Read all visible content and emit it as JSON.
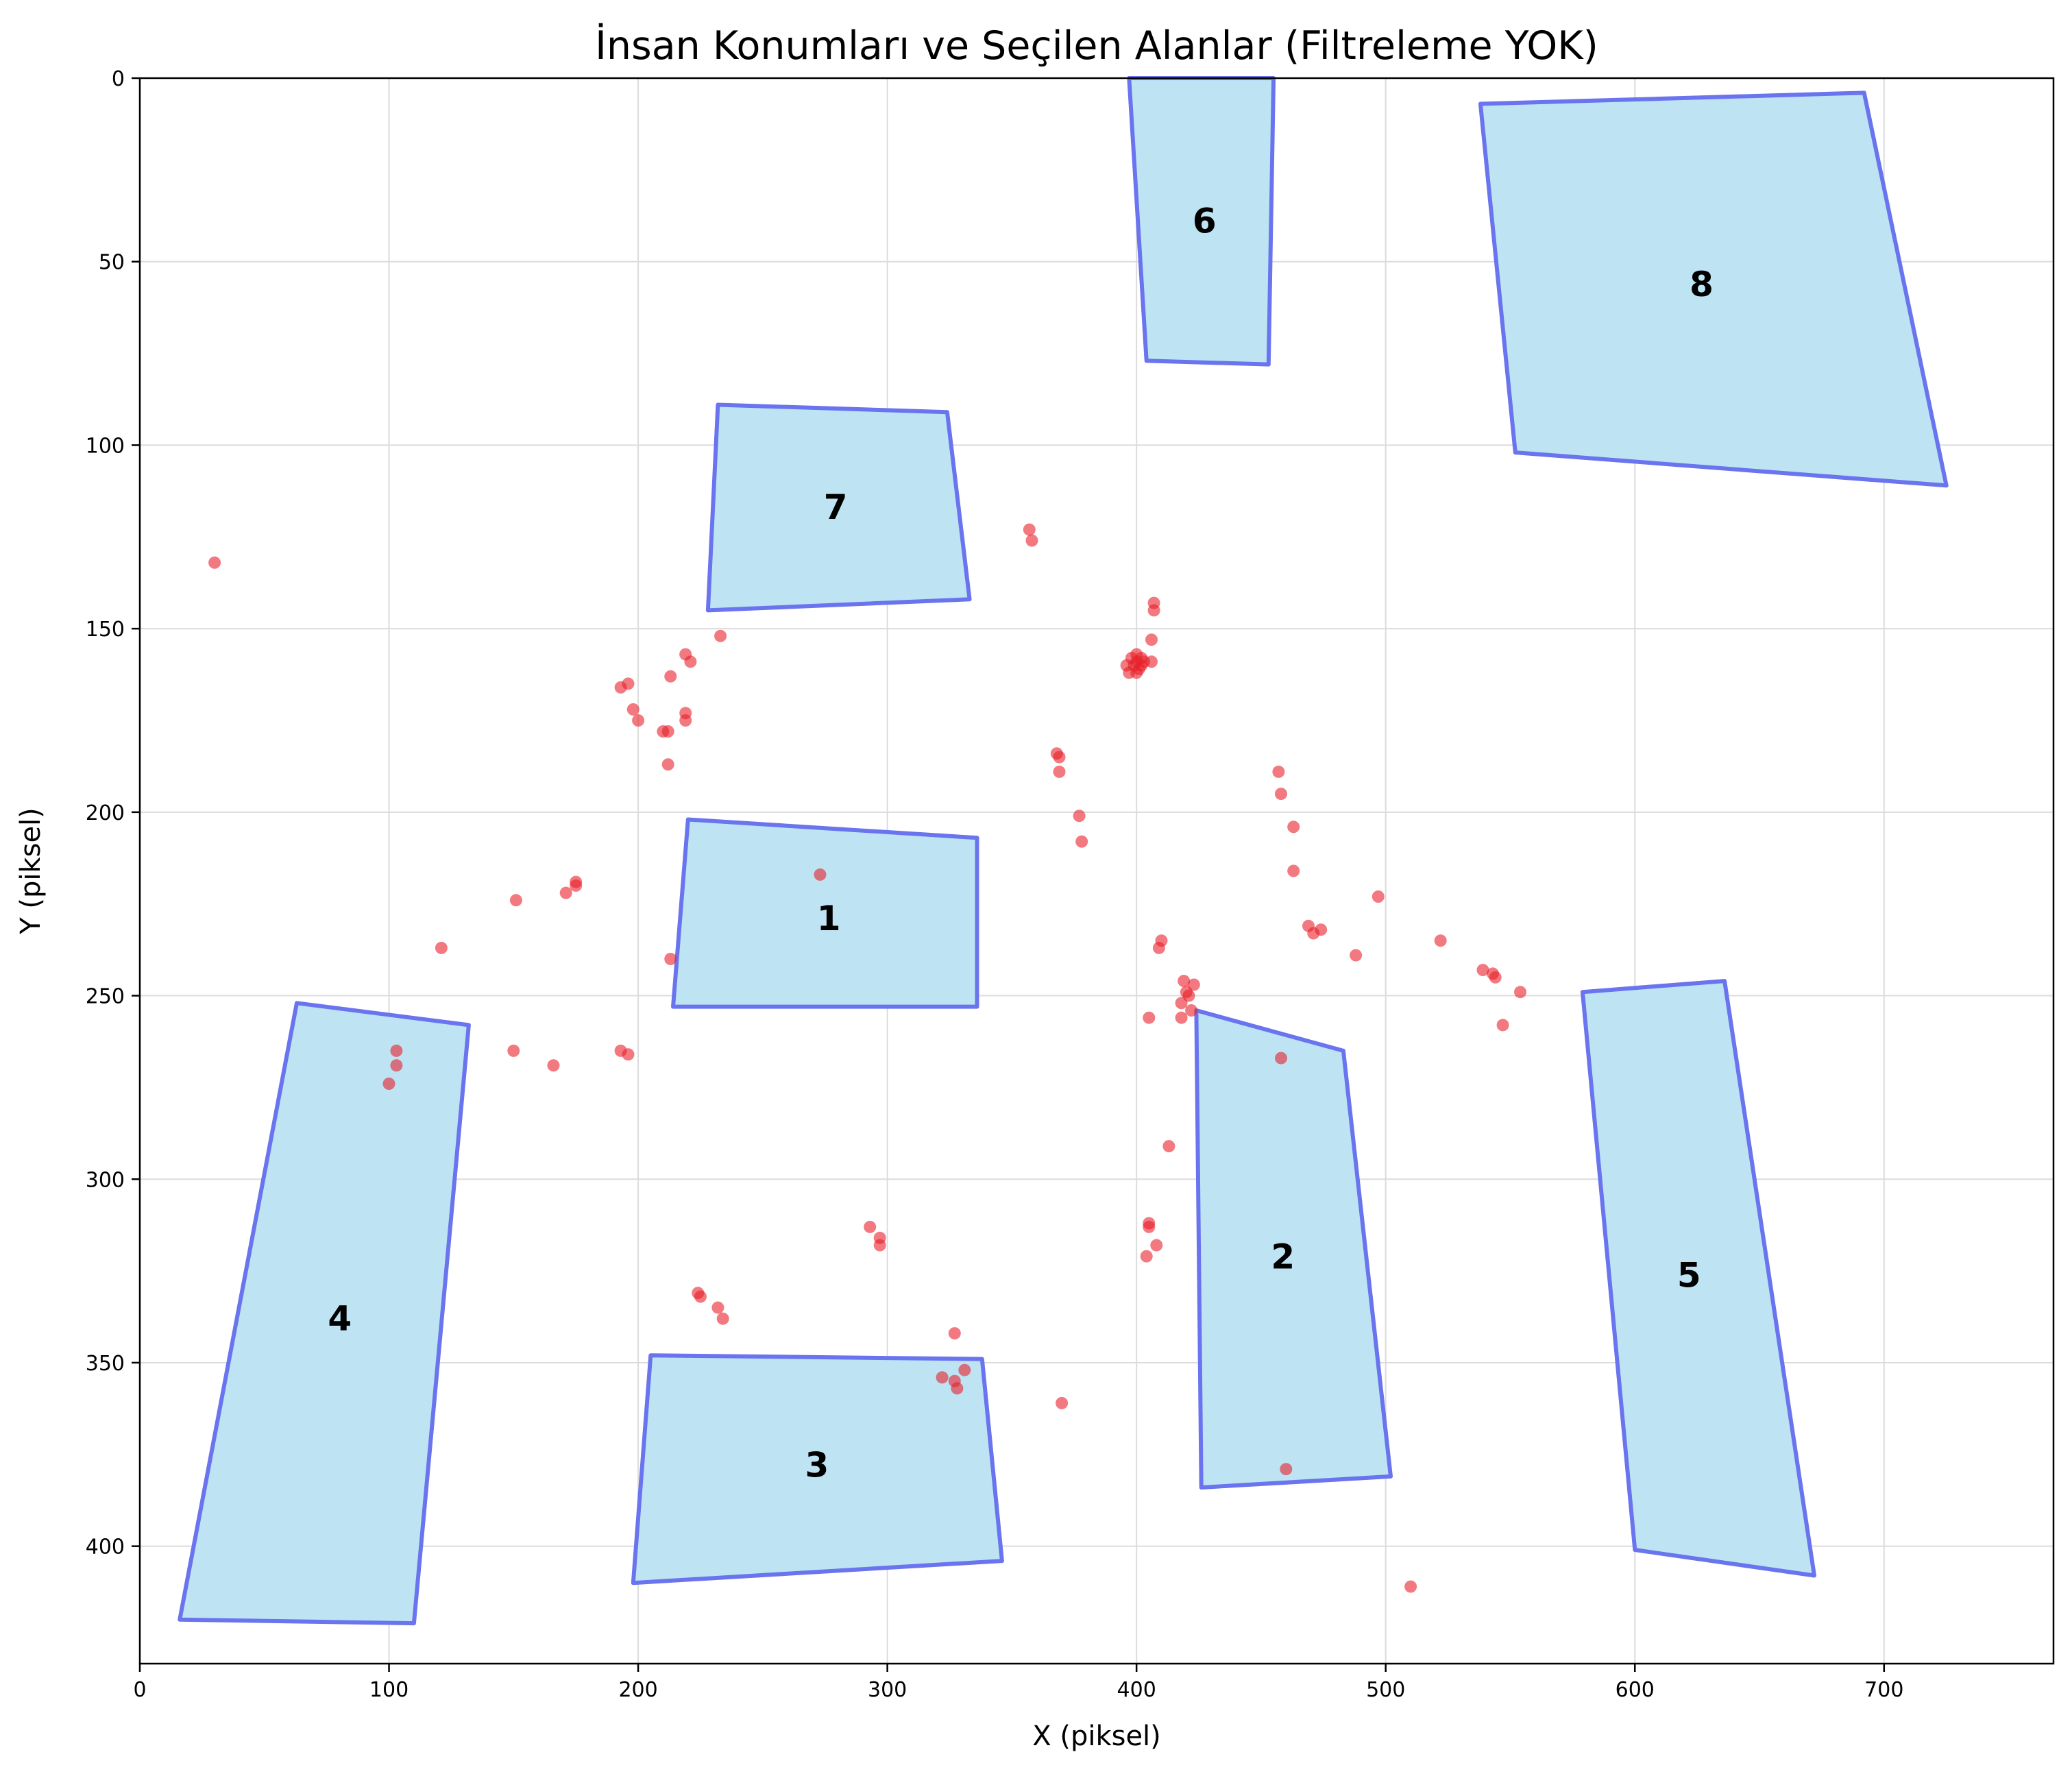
{
  "chart_data": {
    "type": "scatter",
    "title": "İnsan Konumları ve Seçilen Alanlar (Filtreleme YOK)",
    "xlabel": "X (piksel)",
    "ylabel": "Y (piksel)",
    "xlim": [
      0,
      768
    ],
    "ylim": [
      432,
      0
    ],
    "y_inverted": true,
    "xticks": [
      0,
      100,
      200,
      300,
      400,
      500,
      600,
      700
    ],
    "yticks": [
      0,
      50,
      100,
      150,
      200,
      250,
      300,
      350,
      400
    ],
    "grid": true,
    "colors": {
      "points": "#e8202a",
      "region_fill": "#bee4f4",
      "region_edge": "#6a74ee"
    },
    "regions": [
      {
        "label": "1",
        "polygon": [
          [
            220,
            202
          ],
          [
            336,
            207
          ],
          [
            336,
            253
          ],
          [
            214,
            253
          ]
        ]
      },
      {
        "label": "2",
        "polygon": [
          [
            424,
            254
          ],
          [
            483,
            265
          ],
          [
            502,
            381
          ],
          [
            426,
            384
          ]
        ]
      },
      {
        "label": "3",
        "polygon": [
          [
            205,
            348
          ],
          [
            338,
            349
          ],
          [
            346,
            404
          ],
          [
            198,
            410
          ]
        ]
      },
      {
        "label": "4",
        "polygon": [
          [
            63,
            252
          ],
          [
            132,
            258
          ],
          [
            110,
            421
          ],
          [
            16,
            420
          ]
        ]
      },
      {
        "label": "5",
        "polygon": [
          [
            579,
            249
          ],
          [
            636,
            246
          ],
          [
            672,
            408
          ],
          [
            600,
            401
          ]
        ]
      },
      {
        "label": "6",
        "polygon": [
          [
            397,
            0
          ],
          [
            455,
            0
          ],
          [
            453,
            78
          ],
          [
            404,
            77
          ]
        ]
      },
      {
        "label": "7",
        "polygon": [
          [
            232,
            89
          ],
          [
            324,
            91
          ],
          [
            333,
            142
          ],
          [
            228,
            145
          ]
        ]
      },
      {
        "label": "8",
        "polygon": [
          [
            538,
            7
          ],
          [
            692,
            4
          ],
          [
            725,
            111
          ],
          [
            552,
            102
          ]
        ]
      }
    ],
    "points": [
      [
        30,
        132
      ],
      [
        357,
        123
      ],
      [
        358,
        126
      ],
      [
        233,
        152
      ],
      [
        219,
        157
      ],
      [
        221,
        159
      ],
      [
        213,
        163
      ],
      [
        193,
        166
      ],
      [
        196,
        165
      ],
      [
        198,
        172
      ],
      [
        200,
        175
      ],
      [
        219,
        173
      ],
      [
        219,
        175
      ],
      [
        210,
        178
      ],
      [
        212,
        178
      ],
      [
        212,
        187
      ],
      [
        407,
        143
      ],
      [
        407,
        145
      ],
      [
        406,
        153
      ],
      [
        406,
        159
      ],
      [
        396,
        160
      ],
      [
        397,
        162
      ],
      [
        398,
        158
      ],
      [
        399,
        160
      ],
      [
        400,
        157
      ],
      [
        400,
        159
      ],
      [
        401,
        161
      ],
      [
        402,
        158
      ],
      [
        402,
        160
      ],
      [
        403,
        159
      ],
      [
        400,
        162
      ],
      [
        368,
        184
      ],
      [
        369,
        185
      ],
      [
        369,
        189
      ],
      [
        377,
        201
      ],
      [
        378,
        208
      ],
      [
        457,
        189
      ],
      [
        458,
        195
      ],
      [
        463,
        204
      ],
      [
        463,
        216
      ],
      [
        273,
        217
      ],
      [
        175,
        219
      ],
      [
        175,
        220
      ],
      [
        171,
        222
      ],
      [
        151,
        224
      ],
      [
        121,
        237
      ],
      [
        213,
        240
      ],
      [
        469,
        231
      ],
      [
        471,
        233
      ],
      [
        474,
        232
      ],
      [
        488,
        239
      ],
      [
        497,
        223
      ],
      [
        522,
        235
      ],
      [
        539,
        243
      ],
      [
        543,
        244
      ],
      [
        544,
        245
      ],
      [
        554,
        249
      ],
      [
        547,
        258
      ],
      [
        410,
        235
      ],
      [
        409,
        237
      ],
      [
        419,
        246
      ],
      [
        420,
        249
      ],
      [
        423,
        247
      ],
      [
        421,
        250
      ],
      [
        418,
        252
      ],
      [
        418,
        256
      ],
      [
        422,
        254
      ],
      [
        405,
        256
      ],
      [
        103,
        265
      ],
      [
        103,
        269
      ],
      [
        100,
        274
      ],
      [
        150,
        265
      ],
      [
        166,
        269
      ],
      [
        193,
        265
      ],
      [
        196,
        266
      ],
      [
        458,
        267
      ],
      [
        413,
        291
      ],
      [
        293,
        313
      ],
      [
        297,
        316
      ],
      [
        297,
        318
      ],
      [
        405,
        312
      ],
      [
        405,
        313
      ],
      [
        408,
        318
      ],
      [
        404,
        321
      ],
      [
        224,
        331
      ],
      [
        225,
        332
      ],
      [
        232,
        335
      ],
      [
        234,
        338
      ],
      [
        327,
        342
      ],
      [
        331,
        352
      ],
      [
        322,
        354
      ],
      [
        327,
        355
      ],
      [
        328,
        357
      ],
      [
        370,
        361
      ],
      [
        460,
        379
      ],
      [
        510,
        411
      ]
    ]
  }
}
